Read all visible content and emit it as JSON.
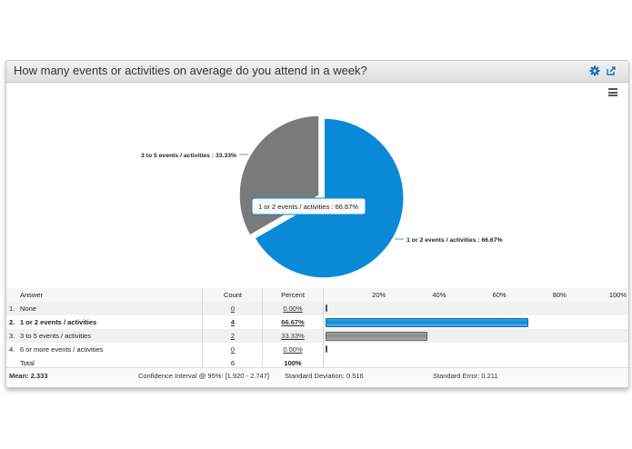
{
  "question": "How many events or activities on average do you attend in a week?",
  "icons": {
    "settings": "gear-icon",
    "export": "export-icon",
    "menu": "hamburger-menu-icon"
  },
  "colors": {
    "blue": "#0a8ad6",
    "gray": "#7a7a7a"
  },
  "chart_data": {
    "type": "pie",
    "slices": [
      {
        "label": "1 or 2 events / activities : 66.67%",
        "value": 66.67,
        "color": "#0a8ad6",
        "exploded": true
      },
      {
        "label": "3 to 5 events / activities : 33.33%",
        "value": 33.33,
        "color": "#7a7a7a",
        "exploded": false
      }
    ],
    "tooltip": "1 or 2 events / activities : 66.67%"
  },
  "table": {
    "headers": {
      "answer": "Answer",
      "count": "Count",
      "percent": "Percent"
    },
    "scale": [
      "20%",
      "40%",
      "60%",
      "80%",
      "100%"
    ],
    "rows": [
      {
        "num": "1.",
        "answer": "None",
        "count": "0",
        "percent": "0.00%",
        "value": 0,
        "color": "#555555",
        "bold": false
      },
      {
        "num": "2.",
        "answer": "1 or 2 events / activities",
        "count": "4",
        "percent": "66.67%",
        "value": 66.67,
        "color": "#0a8ad6",
        "bold": true
      },
      {
        "num": "3.",
        "answer": "3 to 5 events / activities",
        "count": "2",
        "percent": "33.33%",
        "value": 33.33,
        "color": "#8c8c8c",
        "bold": false
      },
      {
        "num": "4.",
        "answer": "6 or more events / activities",
        "count": "0",
        "percent": "0.00%",
        "value": 0,
        "color": "#555555",
        "bold": false
      }
    ],
    "total": {
      "label": "Total",
      "count": "6",
      "percent": "100%"
    }
  },
  "summary": {
    "mean": "Mean: 2.333",
    "ci": "Confidence Interval @ 95%: [1.920 - 2.747]",
    "sd": "Standard Deviation: 0.516",
    "se": "Standard Error: 0.211"
  }
}
